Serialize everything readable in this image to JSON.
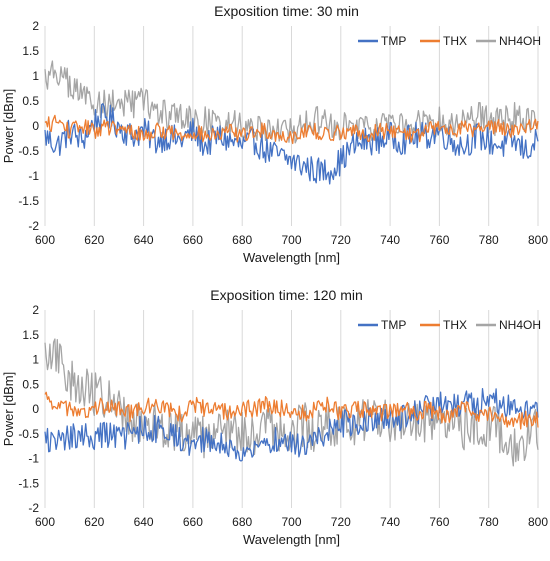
{
  "colors": {
    "TMP": "#4472c4",
    "THX": "#ed7d31",
    "NH4OH": "#a5a5a5",
    "grid": "#d9d9d9"
  },
  "chart_data": [
    {
      "type": "line",
      "title": "Exposition time: 30 min",
      "xlabel": "Wavelength [nm]",
      "ylabel": "Power [dBm]",
      "xlim": [
        600,
        800
      ],
      "ylim": [
        -2,
        2
      ],
      "xticks": [
        "600",
        "620",
        "640",
        "660",
        "680",
        "700",
        "720",
        "740",
        "760",
        "780",
        "800"
      ],
      "yticks": [
        "2",
        "1.5",
        "1",
        "0.5",
        "0",
        "-0.5",
        "-1",
        "-1.5",
        "-2"
      ],
      "grid": "vertical",
      "legend": "top-right",
      "x": [
        600,
        605,
        610,
        615,
        620,
        625,
        630,
        635,
        640,
        645,
        650,
        655,
        660,
        665,
        670,
        675,
        680,
        685,
        690,
        695,
        700,
        705,
        710,
        715,
        720,
        725,
        730,
        735,
        740,
        745,
        750,
        755,
        760,
        765,
        770,
        775,
        780,
        785,
        790,
        795,
        800
      ],
      "series": [
        {
          "name": "TMP",
          "values": [
            -0.2,
            -0.4,
            -0.1,
            -0.3,
            0.1,
            0.2,
            0.0,
            -0.2,
            -0.1,
            -0.3,
            -0.2,
            -0.3,
            -0.1,
            -0.4,
            -0.2,
            -0.3,
            -0.4,
            -0.3,
            -0.5,
            -0.6,
            -0.7,
            -0.8,
            -0.9,
            -0.9,
            -0.7,
            -0.4,
            -0.3,
            -0.3,
            -0.2,
            -0.3,
            -0.2,
            -0.2,
            -0.1,
            -0.3,
            -0.4,
            -0.2,
            -0.3,
            -0.4,
            -0.3,
            -0.5,
            -0.3
          ]
        },
        {
          "name": "THX",
          "values": [
            0.0,
            0.1,
            -0.1,
            0.0,
            -0.1,
            0.0,
            -0.1,
            -0.1,
            -0.2,
            -0.1,
            -0.1,
            -0.2,
            -0.1,
            -0.2,
            -0.2,
            -0.1,
            -0.2,
            -0.1,
            -0.1,
            -0.2,
            -0.2,
            -0.1,
            -0.1,
            -0.2,
            -0.1,
            -0.1,
            -0.2,
            -0.1,
            -0.1,
            -0.1,
            -0.2,
            -0.1,
            0.0,
            -0.1,
            0.0,
            -0.1,
            0.0,
            0.0,
            -0.1,
            0.0,
            0.1
          ]
        },
        {
          "name": "NH4OH",
          "values": [
            1.0,
            1.1,
            0.8,
            0.6,
            0.5,
            0.4,
            0.5,
            0.4,
            0.5,
            0.3,
            0.2,
            0.2,
            0.1,
            0.1,
            0.0,
            0.1,
            0.0,
            0.0,
            0.0,
            -0.1,
            -0.1,
            0.0,
            0.1,
            0.0,
            0.0,
            -0.1,
            0.0,
            0.0,
            0.1,
            0.0,
            0.1,
            0.0,
            0.1,
            0.1,
            0.1,
            0.2,
            0.1,
            0.1,
            0.2,
            0.1,
            0.1
          ]
        }
      ]
    },
    {
      "type": "line",
      "title": "Exposition time: 120 min",
      "xlabel": "Wavelength [nm]",
      "ylabel": "Power [dBm]",
      "xlim": [
        600,
        800
      ],
      "ylim": [
        -2,
        2
      ],
      "xticks": [
        "600",
        "620",
        "640",
        "660",
        "680",
        "700",
        "720",
        "740",
        "760",
        "780",
        "800"
      ],
      "yticks": [
        "2",
        "1.5",
        "1",
        "0.5",
        "0",
        "-0.5",
        "-1",
        "-1.5",
        "-2"
      ],
      "grid": "vertical",
      "legend": "top-right",
      "x": [
        600,
        605,
        610,
        615,
        620,
        625,
        630,
        635,
        640,
        645,
        650,
        655,
        660,
        665,
        670,
        675,
        680,
        685,
        690,
        695,
        700,
        705,
        710,
        715,
        720,
        725,
        730,
        735,
        740,
        745,
        750,
        755,
        760,
        765,
        770,
        775,
        780,
        785,
        790,
        795,
        800
      ],
      "series": [
        {
          "name": "TMP",
          "values": [
            -0.6,
            -0.7,
            -0.6,
            -0.5,
            -0.6,
            -0.5,
            -0.6,
            -0.5,
            -0.4,
            -0.4,
            -0.5,
            -0.6,
            -0.7,
            -0.6,
            -0.7,
            -0.8,
            -0.9,
            -0.8,
            -0.7,
            -0.6,
            -0.7,
            -0.8,
            -0.6,
            -0.4,
            -0.3,
            -0.3,
            -0.2,
            -0.2,
            -0.1,
            -0.2,
            -0.1,
            0.0,
            0.1,
            0.0,
            0.1,
            0.1,
            0.2,
            0.1,
            0.1,
            0.0,
            0.1
          ]
        },
        {
          "name": "THX",
          "values": [
            0.2,
            0.1,
            0.0,
            -0.1,
            0.0,
            0.1,
            0.0,
            -0.1,
            0.0,
            0.1,
            0.0,
            -0.1,
            0.1,
            0.0,
            0.0,
            -0.1,
            0.0,
            0.0,
            0.1,
            0.0,
            0.0,
            -0.1,
            0.0,
            0.1,
            -0.1,
            0.0,
            0.0,
            -0.1,
            0.0,
            0.0,
            -0.1,
            0.0,
            -0.1,
            -0.1,
            0.0,
            -0.1,
            -0.1,
            -0.2,
            -0.3,
            -0.2,
            -0.2
          ]
        },
        {
          "name": "NH4OH",
          "values": [
            1.1,
            1.0,
            0.6,
            0.4,
            0.3,
            0.2,
            0.0,
            -0.2,
            -0.3,
            -0.3,
            -0.4,
            -0.5,
            -0.5,
            -0.6,
            -0.5,
            -0.4,
            -0.5,
            -0.5,
            -0.4,
            -0.5,
            -0.4,
            -0.3,
            -0.5,
            -0.3,
            -0.3,
            -0.3,
            -0.2,
            -0.2,
            -0.3,
            -0.2,
            -0.2,
            -0.3,
            -0.3,
            -0.3,
            -0.4,
            -0.4,
            -0.3,
            -0.5,
            -0.8,
            -0.6,
            -0.4
          ]
        }
      ]
    }
  ]
}
